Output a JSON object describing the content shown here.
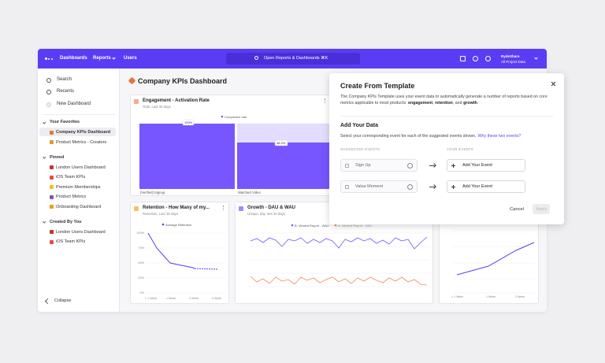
{
  "nav": {
    "items": [
      "Dashboards",
      "Reports",
      "Users"
    ],
    "search": "Open Reports & Dashboards ⌘K",
    "account": {
      "name": "RydeShare",
      "project": "All Project Data"
    }
  },
  "sidebar": {
    "actions": [
      "Search",
      "Recents",
      "New Dashboard"
    ],
    "sections": [
      {
        "title": "Your Favorites",
        "items": [
          "Company KPIs Dashboard",
          "Product Metrics - Creators"
        ]
      },
      {
        "title": "Pinned",
        "items": [
          "London Users Dashboard",
          "iOS Team KPIs",
          "Premium Memberships",
          "Product Metrics",
          "Onboarding Dashboard"
        ]
      },
      {
        "title": "Created By You",
        "items": [
          "London Users Dashboard",
          "iOS Team KPIs"
        ]
      }
    ],
    "collapse": "Collapse"
  },
  "dashboard": {
    "title": "Company KPIs Dashboard",
    "cards": [
      {
        "title": "Engagement - Activation Rate",
        "subtitle": "Total, Last 30 days",
        "legend": [
          "Completion rate"
        ],
        "bar_labels": [
          "100%",
          "48.3%"
        ],
        "x_labels": [
          "[Verified] Signup",
          "Watched Video"
        ]
      },
      {
        "title": "Retention - How Many of my...",
        "subtitle": "Retention, Last 30 days",
        "legend": [
          "Average Retention"
        ],
        "y_labels": [
          "100%",
          "75%",
          "50%",
          "25%",
          "0%"
        ],
        "x_labels": [
          "< 1 Week",
          "1 Week",
          "2 Week",
          "3 Week"
        ]
      },
      {
        "title": "Growth - DAU & WAU",
        "subtitle": "Unique, day, last 30 days",
        "legend": [
          "B. Viewed Report - WAU",
          "A. Viewed Report - DAU"
        ]
      },
      {
        "x_labels": [
          "< 1 Week",
          "1 Week",
          "2 Week"
        ]
      }
    ]
  },
  "modal": {
    "title": "Create From Template",
    "description": [
      "The Company KPIs Template uses your event data to automatically generate a number of reports based on core metrics applicable to most products: ",
      "engagement",
      ", ",
      "retention",
      ", and ",
      "growth",
      "."
    ],
    "section_title": "Add Your Data",
    "instruction": "Select your corresponding event for each of the suggested events shown.",
    "link": "Why these two events?",
    "headers": [
      "SUGGESTED EVENTS",
      "YOUR EVENTS"
    ],
    "rows": [
      {
        "suggested": "Sign Up",
        "action": "Add Your Event"
      },
      {
        "suggested": "Value Moment",
        "action": "Add Your Event"
      }
    ],
    "buttons": [
      "Cancel",
      "Apply"
    ]
  }
}
